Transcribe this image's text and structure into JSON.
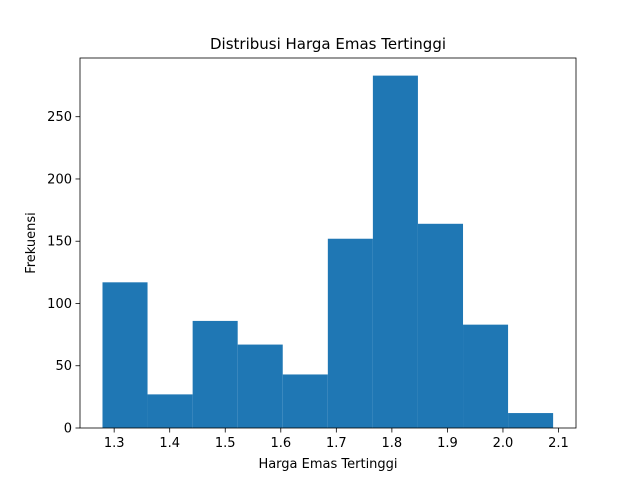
{
  "chart_data": {
    "type": "bar",
    "title": "Distribusi Harga Emas Tertinggi",
    "xlabel": "Harga Emas Tertinggi",
    "ylabel": "Frekuensi",
    "xlim": [
      1.2385,
      2.1315
    ],
    "ylim": [
      0,
      297.15
    ],
    "x_ticks": [
      1.3,
      1.4,
      1.5,
      1.6,
      1.7,
      1.8,
      1.9,
      2.0,
      2.1
    ],
    "x_tick_labels": [
      "1.3",
      "1.4",
      "1.5",
      "1.6",
      "1.7",
      "1.8",
      "1.9",
      "2.0",
      "2.1"
    ],
    "y_ticks": [
      0,
      50,
      100,
      150,
      200,
      250
    ],
    "y_tick_labels": [
      "0",
      "50",
      "100",
      "150",
      "200",
      "250"
    ],
    "bin_edges": [
      1.279,
      1.3601,
      1.4413,
      1.5224,
      1.6035,
      1.6847,
      1.7658,
      1.8469,
      1.9281,
      2.0092,
      2.0903
    ],
    "values": [
      117,
      27,
      86,
      67,
      43,
      152,
      283,
      164,
      83,
      12
    ],
    "bar_color": "#1f77b4",
    "grid": false,
    "legend": "none"
  }
}
